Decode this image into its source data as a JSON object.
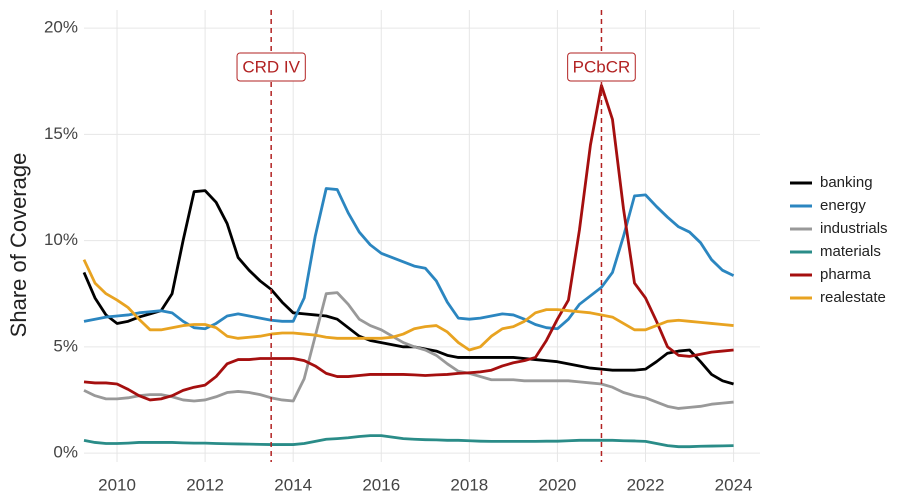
{
  "chart_data": {
    "type": "line",
    "y_label": "Share of Coverage",
    "x": [
      2009.25,
      2009.5,
      2009.75,
      2010,
      2010.25,
      2010.5,
      2010.75,
      2011,
      2011.25,
      2011.5,
      2011.75,
      2012,
      2012.25,
      2012.5,
      2012.75,
      2013,
      2013.25,
      2013.5,
      2013.75,
      2014,
      2014.25,
      2014.5,
      2014.75,
      2015,
      2015.25,
      2015.5,
      2015.75,
      2016,
      2016.25,
      2016.5,
      2016.75,
      2017,
      2017.25,
      2017.5,
      2017.75,
      2018,
      2018.25,
      2018.5,
      2018.75,
      2019,
      2019.25,
      2019.5,
      2019.75,
      2020,
      2020.25,
      2020.5,
      2020.75,
      2021,
      2021.25,
      2021.5,
      2021.75,
      2022,
      2022.25,
      2022.5,
      2022.75,
      2023,
      2023.25,
      2023.5,
      2023.75,
      2024
    ],
    "series": [
      {
        "name": "banking",
        "color": "#000000",
        "values": [
          8.5,
          7.3,
          6.5,
          6.1,
          6.2,
          6.4,
          6.55,
          6.7,
          7.5,
          10.0,
          12.3,
          12.35,
          11.8,
          10.8,
          9.2,
          8.6,
          8.1,
          7.7,
          7.1,
          6.6,
          6.55,
          6.5,
          6.45,
          6.3,
          5.9,
          5.5,
          5.3,
          5.2,
          5.1,
          5.0,
          5.0,
          4.9,
          4.8,
          4.6,
          4.5,
          4.5,
          4.5,
          4.5,
          4.5,
          4.5,
          4.45,
          4.4,
          4.35,
          4.3,
          4.2,
          4.1,
          4.0,
          3.95,
          3.9,
          3.9,
          3.9,
          3.95,
          4.3,
          4.7,
          4.8,
          4.85,
          4.3,
          3.7,
          3.4,
          3.25
        ]
      },
      {
        "name": "energy",
        "color": "#2b86c0",
        "values": [
          6.2,
          6.3,
          6.4,
          6.45,
          6.5,
          6.6,
          6.65,
          6.7,
          6.6,
          6.2,
          5.9,
          5.85,
          6.1,
          6.45,
          6.55,
          6.45,
          6.35,
          6.25,
          6.2,
          6.2,
          7.3,
          10.2,
          12.45,
          12.4,
          11.3,
          10.4,
          9.8,
          9.4,
          9.2,
          9.0,
          8.8,
          8.7,
          8.1,
          7.1,
          6.35,
          6.3,
          6.35,
          6.45,
          6.55,
          6.5,
          6.3,
          6.05,
          5.9,
          5.85,
          6.3,
          7.0,
          7.4,
          7.8,
          8.5,
          10.2,
          12.1,
          12.15,
          11.6,
          11.1,
          10.65,
          10.4,
          9.9,
          9.1,
          8.6,
          8.35
        ]
      },
      {
        "name": "industrials",
        "color": "#999999",
        "values": [
          2.95,
          2.7,
          2.55,
          2.55,
          2.6,
          2.7,
          2.75,
          2.75,
          2.65,
          2.5,
          2.45,
          2.5,
          2.65,
          2.85,
          2.9,
          2.85,
          2.75,
          2.6,
          2.5,
          2.45,
          3.5,
          5.5,
          7.5,
          7.55,
          7.0,
          6.3,
          6.0,
          5.8,
          5.5,
          5.2,
          5.0,
          4.85,
          4.6,
          4.2,
          3.85,
          3.75,
          3.6,
          3.45,
          3.45,
          3.45,
          3.4,
          3.4,
          3.4,
          3.4,
          3.4,
          3.35,
          3.3,
          3.25,
          3.1,
          2.85,
          2.7,
          2.6,
          2.4,
          2.2,
          2.1,
          2.15,
          2.2,
          2.3,
          2.35,
          2.4
        ]
      },
      {
        "name": "materials",
        "color": "#2a8c88",
        "values": [
          0.6,
          0.5,
          0.45,
          0.45,
          0.47,
          0.5,
          0.5,
          0.5,
          0.5,
          0.48,
          0.47,
          0.47,
          0.45,
          0.44,
          0.43,
          0.42,
          0.41,
          0.4,
          0.4,
          0.4,
          0.45,
          0.55,
          0.65,
          0.68,
          0.72,
          0.78,
          0.82,
          0.82,
          0.75,
          0.68,
          0.65,
          0.63,
          0.62,
          0.6,
          0.6,
          0.58,
          0.56,
          0.55,
          0.55,
          0.55,
          0.55,
          0.55,
          0.56,
          0.56,
          0.58,
          0.6,
          0.6,
          0.6,
          0.6,
          0.58,
          0.57,
          0.55,
          0.45,
          0.35,
          0.3,
          0.3,
          0.32,
          0.33,
          0.34,
          0.35
        ]
      },
      {
        "name": "pharma",
        "color": "#a50f0f",
        "values": [
          3.35,
          3.3,
          3.3,
          3.25,
          3.0,
          2.7,
          2.5,
          2.55,
          2.7,
          2.95,
          3.1,
          3.2,
          3.6,
          4.2,
          4.4,
          4.4,
          4.45,
          4.45,
          4.45,
          4.45,
          4.35,
          4.1,
          3.75,
          3.6,
          3.6,
          3.65,
          3.7,
          3.7,
          3.7,
          3.7,
          3.68,
          3.65,
          3.68,
          3.7,
          3.75,
          3.78,
          3.82,
          3.9,
          4.1,
          4.25,
          4.35,
          4.5,
          5.3,
          6.3,
          7.2,
          10.5,
          14.5,
          17.3,
          15.7,
          11.5,
          8.0,
          7.3,
          6.2,
          5.0,
          4.6,
          4.55,
          4.65,
          4.75,
          4.8,
          4.85
        ]
      },
      {
        "name": "realestate",
        "color": "#e8a321",
        "values": [
          9.1,
          8.0,
          7.5,
          7.2,
          6.85,
          6.3,
          5.8,
          5.8,
          5.9,
          6.0,
          6.05,
          6.05,
          5.9,
          5.5,
          5.4,
          5.45,
          5.5,
          5.6,
          5.65,
          5.65,
          5.6,
          5.55,
          5.45,
          5.4,
          5.4,
          5.4,
          5.4,
          5.4,
          5.45,
          5.6,
          5.85,
          5.95,
          6.0,
          5.7,
          5.2,
          4.85,
          5.0,
          5.5,
          5.85,
          5.95,
          6.2,
          6.6,
          6.75,
          6.75,
          6.7,
          6.65,
          6.6,
          6.5,
          6.4,
          6.1,
          5.8,
          5.8,
          6.0,
          6.2,
          6.25,
          6.2,
          6.15,
          6.1,
          6.05,
          6.0
        ]
      }
    ],
    "xlim": [
      2009.25,
      2024.6
    ],
    "ylim": [
      -0.42,
      20.85
    ],
    "xticks": [
      2010,
      2012,
      2014,
      2016,
      2018,
      2020,
      2022,
      2024
    ],
    "yticks": [
      {
        "value": 0,
        "label": "0%"
      },
      {
        "value": 5,
        "label": "5%"
      },
      {
        "value": 10,
        "label": "10%"
      },
      {
        "value": 15,
        "label": "15%"
      },
      {
        "value": 20,
        "label": "20%"
      }
    ],
    "grid": true,
    "legend": "right",
    "annotations": [
      {
        "x": 2013.5,
        "label": "CRD IV",
        "color": "#b22222"
      },
      {
        "x": 2021.0,
        "label": "PCbCR",
        "color": "#b22222"
      }
    ]
  }
}
